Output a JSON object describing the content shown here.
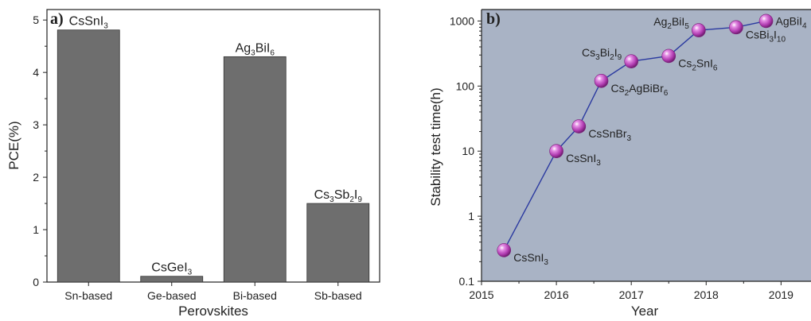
{
  "chart_data": [
    {
      "panel": "a)",
      "type": "bar",
      "xlabel": "Perovskites",
      "ylabel": "PCE(%)",
      "ylim": [
        0,
        5.2
      ],
      "yticks": [
        0,
        1,
        2,
        3,
        4,
        5
      ],
      "grid": false,
      "categories": [
        "Sn-based",
        "Ge-based",
        "Bi-based",
        "Sb-based"
      ],
      "values": [
        4.81,
        0.11,
        4.3,
        1.5
      ],
      "bar_color": "#6e6e6e",
      "annotations": [
        {
          "parts": [
            [
              "CsSnI",
              ""
            ],
            [
              "3",
              "sub"
            ]
          ]
        },
        {
          "parts": [
            [
              "CsGeI",
              ""
            ],
            [
              "3",
              "sub"
            ]
          ]
        },
        {
          "parts": [
            [
              "Ag",
              ""
            ],
            [
              "3",
              "sub"
            ],
            [
              "BiI",
              ""
            ],
            [
              "6",
              "sub"
            ]
          ]
        },
        {
          "parts": [
            [
              "Cs",
              ""
            ],
            [
              "3",
              "sub"
            ],
            [
              "Sb",
              ""
            ],
            [
              "2",
              "sub"
            ],
            [
              "I",
              ""
            ],
            [
              "9",
              "sub"
            ]
          ]
        }
      ]
    },
    {
      "panel": "b)",
      "type": "scatter",
      "xlabel": "Year",
      "ylabel": "Stability test time(h)",
      "xlim": [
        2015,
        2019.4
      ],
      "xticks": [
        2015,
        2016,
        2017,
        2018,
        2019
      ],
      "yscale": "log",
      "ylim": [
        0.1,
        1500
      ],
      "yticks": [
        0.1,
        1,
        10,
        100,
        1000
      ],
      "ytick_labels": [
        "0.1",
        "1",
        "10",
        "100",
        "1000"
      ],
      "background": "#a9b3c5",
      "line_color": "#2b3aa0",
      "marker_color": "#b03ab0",
      "points": [
        {
          "x": 2015.3,
          "y": 0.3,
          "parts": [
            [
              "CsSnI",
              ""
            ],
            [
              "3",
              "sub"
            ]
          ],
          "pos": "right-below"
        },
        {
          "x": 2016.0,
          "y": 10,
          "parts": [
            [
              "CsSnI",
              ""
            ],
            [
              "3",
              "sub"
            ]
          ],
          "pos": "right-below"
        },
        {
          "x": 2016.3,
          "y": 24,
          "parts": [
            [
              "CsSnBr",
              ""
            ],
            [
              "3",
              "sub"
            ]
          ],
          "pos": "right-below"
        },
        {
          "x": 2016.6,
          "y": 120,
          "parts": [
            [
              "Cs",
              ""
            ],
            [
              "2",
              "sub"
            ],
            [
              "AgBiBr",
              ""
            ],
            [
              "6",
              "sub"
            ]
          ],
          "pos": "right-below"
        },
        {
          "x": 2017.0,
          "y": 240,
          "parts": [
            [
              "Cs",
              ""
            ],
            [
              "3",
              "sub"
            ],
            [
              "Bi",
              ""
            ],
            [
              "2",
              "sub"
            ],
            [
              "I",
              ""
            ],
            [
              "9",
              "sub"
            ]
          ],
          "pos": "left-above"
        },
        {
          "x": 2017.5,
          "y": 290,
          "parts": [
            [
              "Cs",
              ""
            ],
            [
              "2",
              "sub"
            ],
            [
              "SnI",
              ""
            ],
            [
              "6",
              "sub"
            ]
          ],
          "pos": "right-below"
        },
        {
          "x": 2017.9,
          "y": 720,
          "parts": [
            [
              "Ag",
              ""
            ],
            [
              "2",
              "sub"
            ],
            [
              "BiI",
              ""
            ],
            [
              "5",
              "sub"
            ]
          ],
          "pos": "left-above"
        },
        {
          "x": 2018.4,
          "y": 800,
          "parts": [
            [
              "CsBi",
              ""
            ],
            [
              "3",
              "sub"
            ],
            [
              "I",
              ""
            ],
            [
              "10",
              "sub"
            ]
          ],
          "pos": "right-below"
        },
        {
          "x": 2018.8,
          "y": 1000,
          "parts": [
            [
              "AgBiI",
              ""
            ],
            [
              "4",
              "sub"
            ]
          ],
          "pos": "right"
        }
      ]
    }
  ]
}
